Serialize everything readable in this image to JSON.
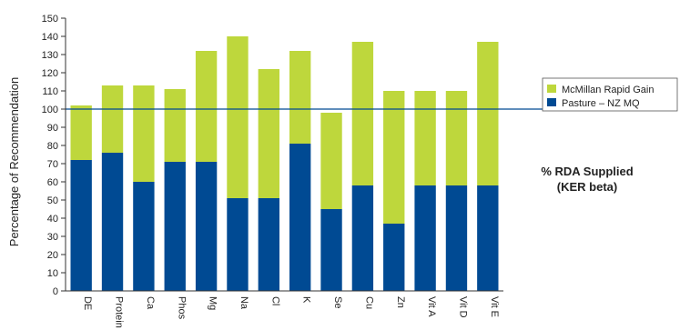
{
  "chart_data": {
    "type": "bar",
    "stacked": true,
    "ylabel": "Percentage of Recommendation",
    "ylim": [
      0,
      150
    ],
    "yticks": [
      0,
      10,
      20,
      30,
      40,
      50,
      60,
      70,
      80,
      90,
      100,
      110,
      120,
      130,
      140,
      150
    ],
    "categories": [
      "DE",
      "Protein",
      "Ca",
      "Phos",
      "Mg",
      "Na",
      "Cl",
      "K",
      "Se",
      "Cu",
      "Zn",
      "Vit A",
      "Vit D",
      "Vit E"
    ],
    "series": [
      {
        "name": "Pasture – NZ MQ",
        "color": "#004a93",
        "values": [
          72,
          76,
          60,
          71,
          71,
          51,
          51,
          81,
          45,
          58,
          37,
          58,
          58,
          58
        ]
      },
      {
        "name": "McMillan Rapid Gain",
        "color": "#bed73c",
        "total_values": [
          102,
          113,
          113,
          111,
          132,
          140,
          122,
          132,
          98,
          137,
          110,
          110,
          110,
          137
        ]
      }
    ],
    "reference_line": {
      "value": 100,
      "color": "#004a93"
    },
    "legend_position": "right",
    "side_title_lines": [
      "% RDA Supplied",
      "(KER beta)"
    ]
  }
}
